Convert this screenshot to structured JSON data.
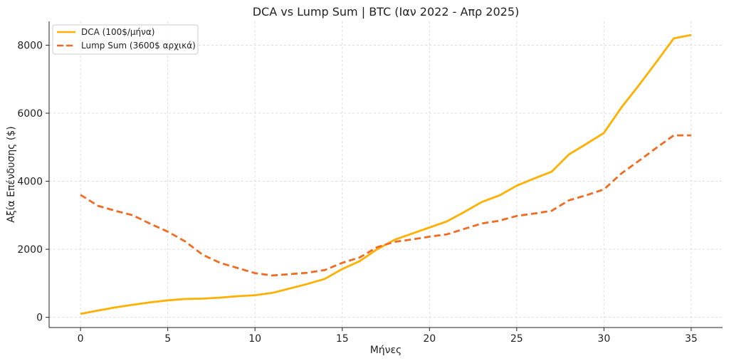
{
  "chart_data": {
    "type": "line",
    "title": "DCA vs Lump Sum | BTC (Ιαν 2022 - Απρ 2025)",
    "xlabel": "Μήνες",
    "ylabel": "Αξία Επένδυσης ($)",
    "xlim": [
      -1.8,
      36.8
    ],
    "ylim": [
      -300,
      8700
    ],
    "xticks": [
      0,
      5,
      10,
      15,
      20,
      25,
      30,
      35
    ],
    "yticks": [
      0,
      2000,
      4000,
      6000,
      8000
    ],
    "grid": true,
    "legend_position": "top-left",
    "x": [
      0,
      1,
      2,
      3,
      4,
      5,
      6,
      7,
      8,
      9,
      10,
      11,
      12,
      13,
      14,
      15,
      16,
      17,
      18,
      19,
      20,
      21,
      22,
      23,
      24,
      25,
      26,
      27,
      28,
      29,
      30,
      31,
      32,
      33,
      34,
      35
    ],
    "series": [
      {
        "name": "DCA (100$/μήνα)",
        "color": "#FFB000",
        "style": "solid",
        "values": [
          100,
          200,
          290,
          370,
          440,
          500,
          540,
          550,
          580,
          620,
          650,
          720,
          850,
          980,
          1130,
          1420,
          1650,
          2000,
          2280,
          2460,
          2640,
          2820,
          3100,
          3390,
          3580,
          3870,
          4080,
          4280,
          4790,
          5100,
          5420,
          6170,
          6820,
          7500,
          8200,
          8300
        ]
      },
      {
        "name": "Lump Sum (3600$ αρχικά)",
        "color": "#F26B21",
        "style": "dashed",
        "values": [
          3600,
          3280,
          3130,
          3000,
          2750,
          2520,
          2230,
          1840,
          1600,
          1450,
          1300,
          1230,
          1270,
          1310,
          1390,
          1600,
          1760,
          2060,
          2220,
          2290,
          2370,
          2440,
          2600,
          2760,
          2840,
          2980,
          3050,
          3130,
          3440,
          3590,
          3760,
          4230,
          4600,
          4980,
          5350,
          5350
        ]
      }
    ]
  }
}
